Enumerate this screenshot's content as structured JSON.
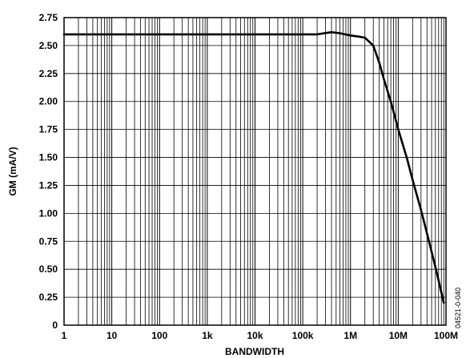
{
  "chart_data": {
    "type": "line",
    "xlabel": "BANDWIDTH",
    "ylabel": "GM (mA/V)",
    "x_scale": "log",
    "xlim": [
      1,
      100000000
    ],
    "ylim": [
      0,
      2.75
    ],
    "x_ticks": [
      {
        "value": 1,
        "label": "1"
      },
      {
        "value": 10,
        "label": "10"
      },
      {
        "value": 100,
        "label": "100"
      },
      {
        "value": 1000,
        "label": "1k"
      },
      {
        "value": 10000,
        "label": "10k"
      },
      {
        "value": 100000,
        "label": "100k"
      },
      {
        "value": 1000000,
        "label": "1M"
      },
      {
        "value": 10000000,
        "label": "10M"
      },
      {
        "value": 100000000,
        "label": "100M"
      }
    ],
    "y_ticks": [
      "0",
      "0.25",
      "0.50",
      "0.75",
      "1.00",
      "1.25",
      "1.50",
      "1.75",
      "2.00",
      "2.25",
      "2.50",
      "2.75"
    ],
    "grid": true,
    "series": [
      {
        "color": "#000000",
        "x": [
          1,
          10,
          100,
          1000,
          10000,
          100000,
          200000,
          400000,
          600000,
          1000000,
          1500000,
          2000000,
          3000000,
          4000000,
          5000000,
          7000000,
          10000000,
          15000000,
          20000000,
          30000000,
          40000000,
          60000000,
          90000000
        ],
        "y": [
          2.6,
          2.6,
          2.6,
          2.6,
          2.6,
          2.6,
          2.6,
          2.62,
          2.61,
          2.59,
          2.58,
          2.57,
          2.5,
          2.35,
          2.2,
          2.0,
          1.75,
          1.5,
          1.3,
          1.03,
          0.82,
          0.52,
          0.2
        ]
      }
    ]
  },
  "figure_code": "04521-0-040"
}
